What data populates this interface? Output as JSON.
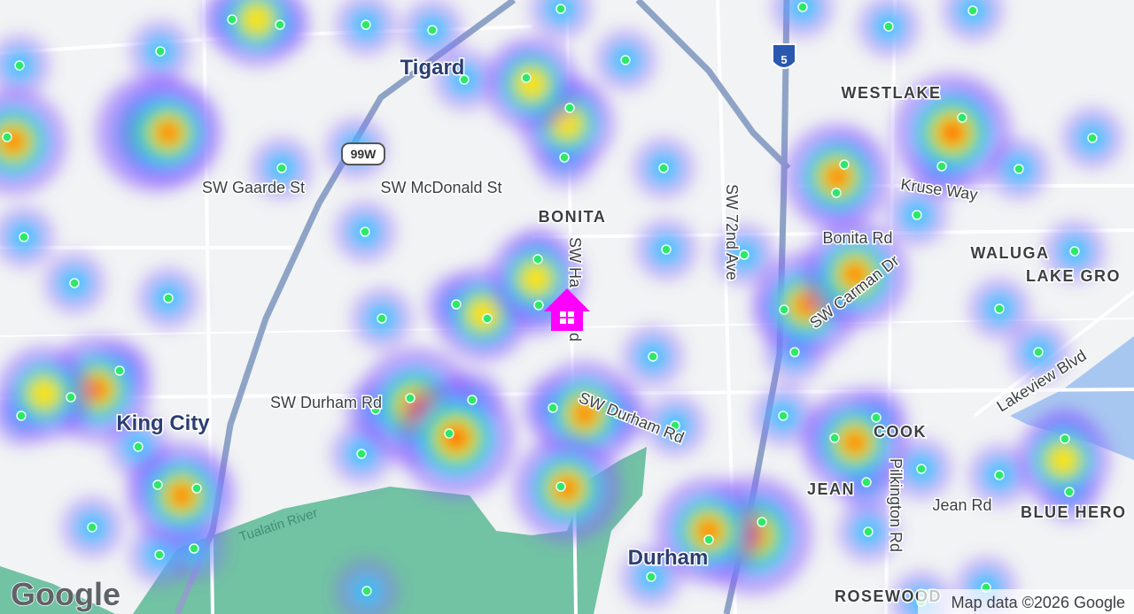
{
  "map": {
    "cities": [
      "Tigard",
      "King City",
      "Durham"
    ],
    "neighborhoods": [
      "WESTLAKE",
      "BONITA",
      "WALUGA",
      "LAKE GRO",
      "COOK",
      "JEAN",
      "BLUE HERO",
      "ROSEWOOD"
    ],
    "streets": [
      "SW Gaarde St",
      "SW McDonald St",
      "SW Ha",
      "d",
      "SW 72nd Ave",
      "Kruse Way",
      "Bonita Rd",
      "SW Carman Dr",
      "Lakeview Blvd",
      "SW Durham Rd",
      "SW Durham Rd",
      "Pilkington Rd",
      "Jean Rd",
      "Tualatin River"
    ],
    "shields": [
      "99W",
      "5"
    ],
    "logo": "Google",
    "attribution": "Map data ©2026 Google"
  }
}
